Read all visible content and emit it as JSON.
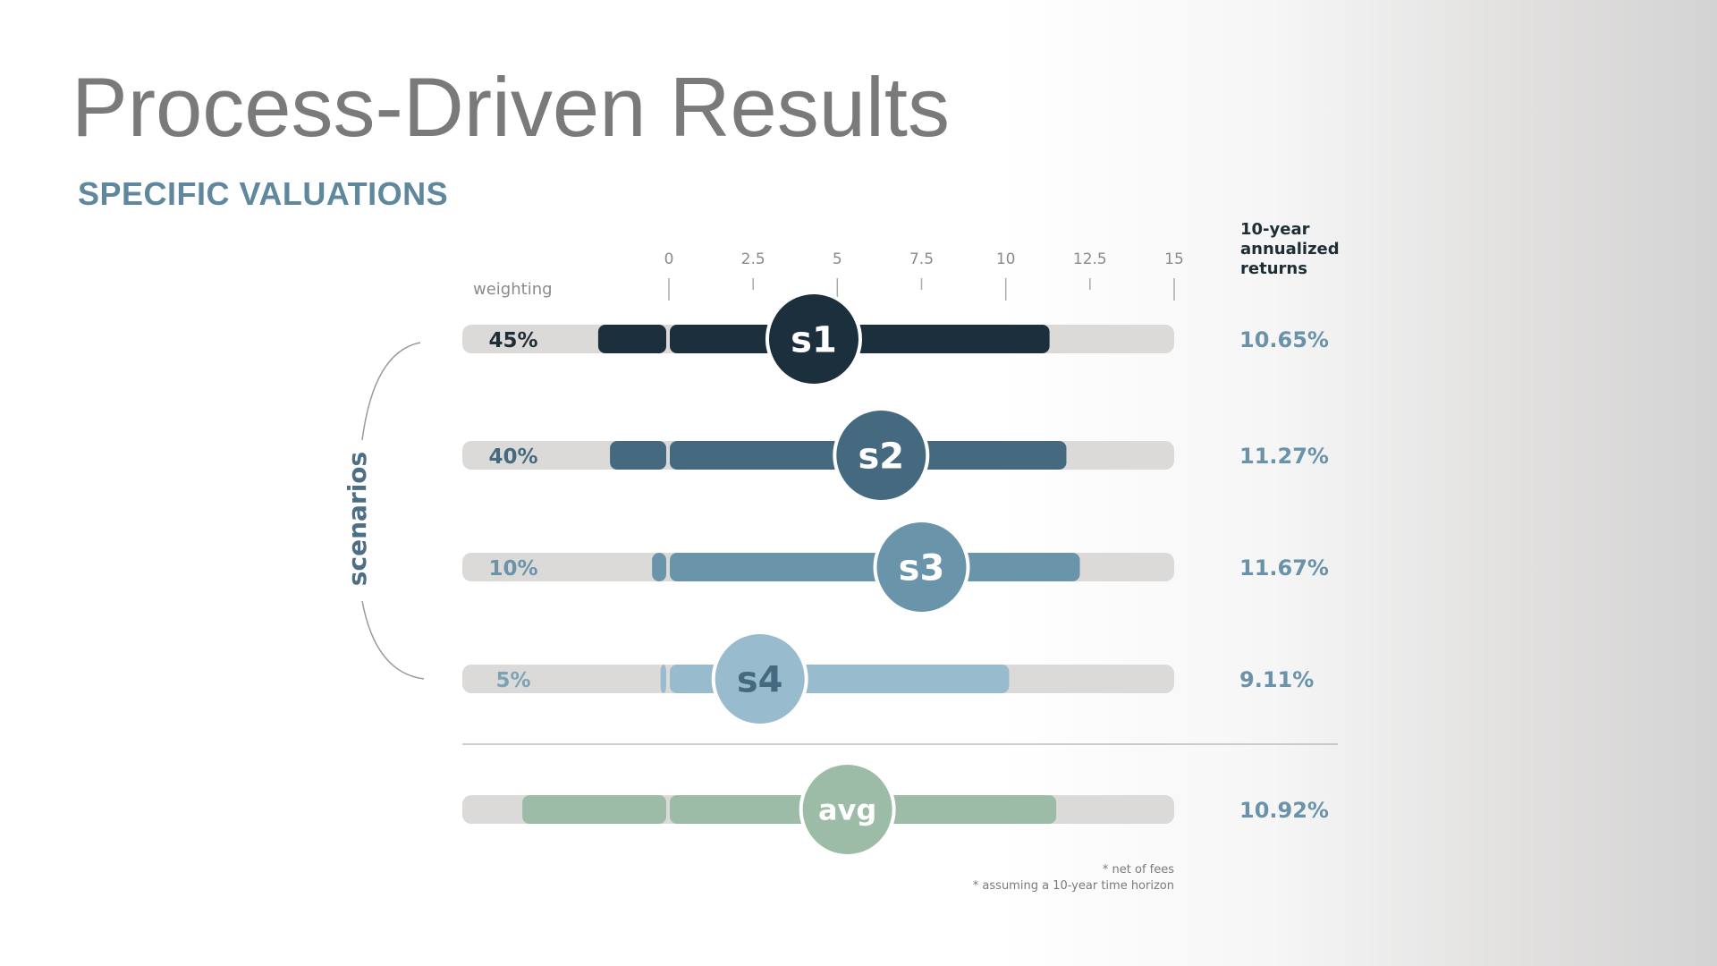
{
  "title": "Process-Driven Results",
  "subtitle": "SPECIFIC VALUATIONS",
  "chart_data": {
    "type": "bar",
    "x_ticks": [
      "0",
      "2.5",
      "5",
      "7.5",
      "10",
      "12.5",
      "15"
    ],
    "xlim": [
      0,
      15
    ],
    "weighting_header": "weighting",
    "returns_header": [
      "10-year",
      "annualized",
      "returns"
    ],
    "group_label": "scenarios",
    "rows": [
      {
        "name": "s1",
        "weighting": "45%",
        "low": -2.1,
        "mid": 4.3,
        "high": 11.3,
        "return": "10.65%",
        "color": "#1c2f3d",
        "text_color": "#ffffff",
        "pct_color": "#1f2d36"
      },
      {
        "name": "s2",
        "weighting": "40%",
        "low": -1.75,
        "mid": 6.3,
        "high": 11.8,
        "return": "11.27%",
        "color": "#456a80",
        "text_color": "#ffffff",
        "pct_color": "#456a80"
      },
      {
        "name": "s3",
        "weighting": "10%",
        "low": -0.5,
        "mid": 7.5,
        "high": 12.2,
        "return": "11.67%",
        "color": "#6a94a9",
        "text_color": "#ffffff",
        "pct_color": "#6a94a9"
      },
      {
        "name": "s4",
        "weighting": "5%",
        "low": -0.25,
        "mid": 2.7,
        "high": 10.1,
        "return": "9.11%",
        "color": "#98bbce",
        "text_color": "#456a80",
        "pct_color": "#7ca2b8"
      },
      {
        "name": "avg",
        "weighting": "",
        "low": -4.35,
        "mid": 5.3,
        "high": 11.5,
        "return": "10.92%",
        "color": "#9cbca8",
        "text_color": "#ffffff",
        "pct_color": "#9cbca8"
      }
    ],
    "footnotes": [
      "* net of fees",
      "* assuming a 10-year time horizon"
    ],
    "track_color": "#dcdad8"
  }
}
